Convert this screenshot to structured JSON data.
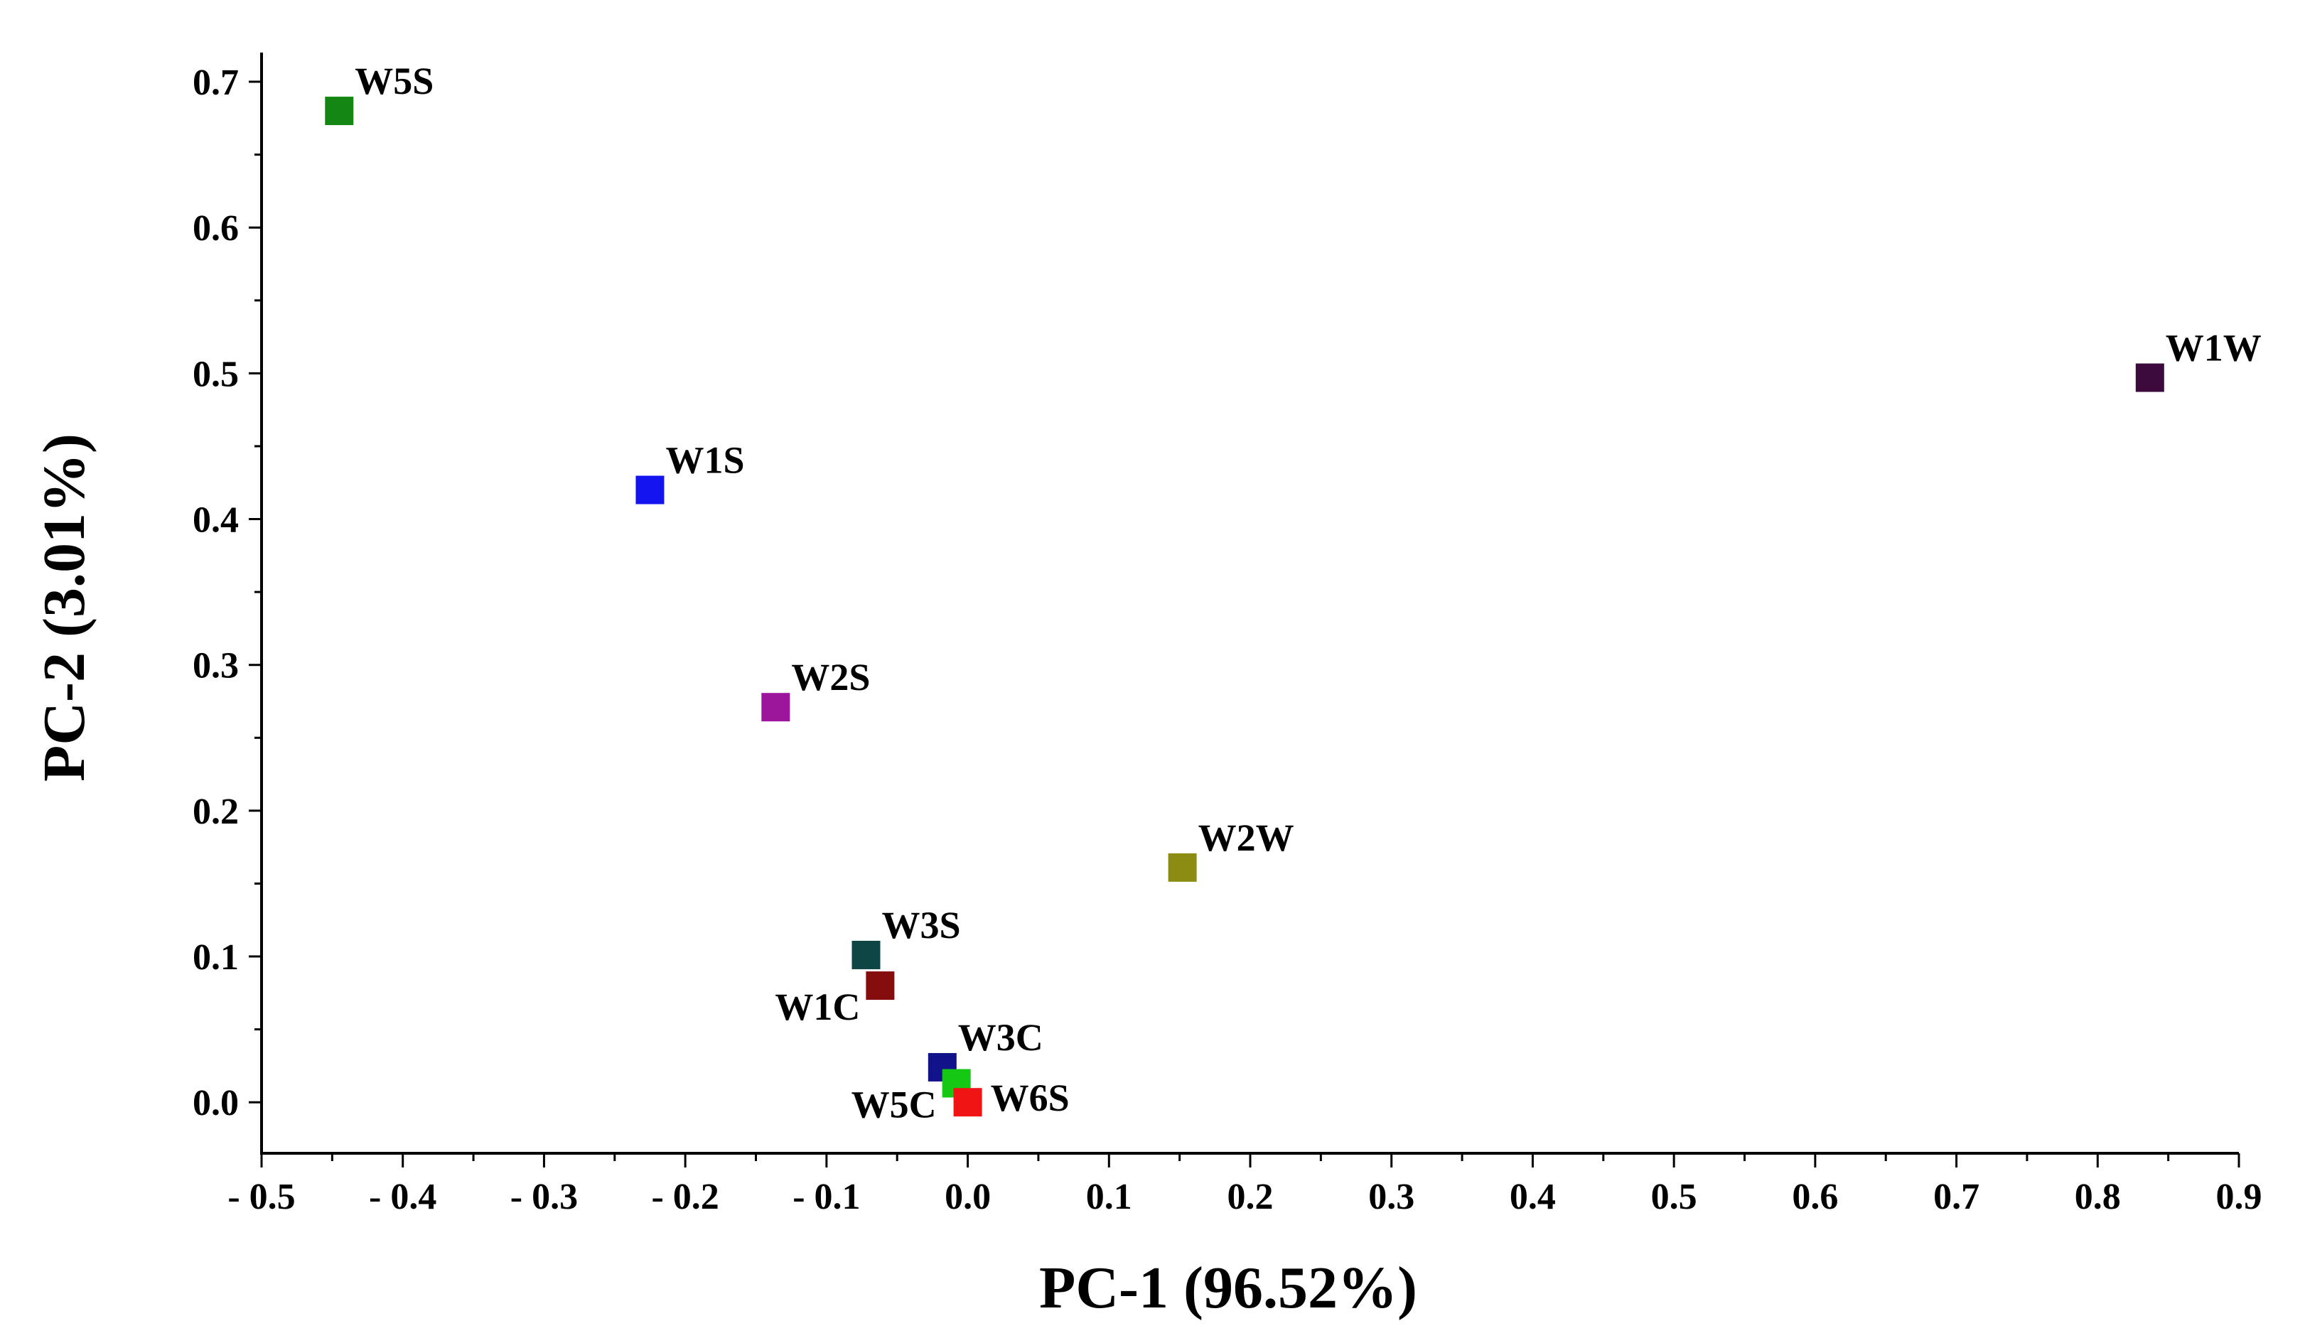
{
  "chart_data": {
    "type": "scatter",
    "title": "",
    "xlabel": "PC-1 (96.52%)",
    "ylabel": "PC-2 (3.01%)",
    "xlim": [
      -0.5,
      0.9
    ],
    "ylim": [
      -0.035,
      0.72
    ],
    "x_ticks": [
      -0.5,
      -0.4,
      -0.3,
      -0.2,
      -0.1,
      0.0,
      0.1,
      0.2,
      0.3,
      0.4,
      0.5,
      0.6,
      0.7,
      0.8,
      0.9
    ],
    "x_tick_labels": [
      "- 0.5",
      "- 0.4",
      "- 0.3",
      "- 0.2",
      "- 0.1",
      "0.0",
      "0.1",
      "0.2",
      "0.3",
      "0.4",
      "0.5",
      "0.6",
      "0.7",
      "0.8",
      "0.9"
    ],
    "y_ticks": [
      0.0,
      0.1,
      0.2,
      0.3,
      0.4,
      0.5,
      0.6,
      0.7
    ],
    "y_tick_labels": [
      "0.0",
      "0.1",
      "0.2",
      "0.3",
      "0.4",
      "0.5",
      "0.6",
      "0.7"
    ],
    "grid": false,
    "legend": "none",
    "points": [
      {
        "label": "W5S",
        "x": -0.445,
        "y": 0.68,
        "color": "#138613",
        "label_side": "top-right"
      },
      {
        "label": "W1W",
        "x": 0.837,
        "y": 0.497,
        "color": "#3c0a3c",
        "label_side": "top-right"
      },
      {
        "label": "W1S",
        "x": -0.225,
        "y": 0.42,
        "color": "#1414f0",
        "label_side": "top-right"
      },
      {
        "label": "W2S",
        "x": -0.136,
        "y": 0.271,
        "color": "#9b169b",
        "label_side": "top-right"
      },
      {
        "label": "W2W",
        "x": 0.152,
        "y": 0.161,
        "color": "#8c8c12",
        "label_side": "top-right"
      },
      {
        "label": "W3S",
        "x": -0.072,
        "y": 0.101,
        "color": "#0e4646",
        "label_side": "top-right"
      },
      {
        "label": "W1C",
        "x": -0.062,
        "y": 0.08,
        "color": "#850d0d",
        "label_side": "bottom-left"
      },
      {
        "label": "W3C",
        "x": -0.018,
        "y": 0.024,
        "color": "#12128a",
        "label_side": "top-right"
      },
      {
        "label": "W5C",
        "x": -0.008,
        "y": 0.013,
        "color": "#14c814",
        "label_side": "bottom-left"
      },
      {
        "label": "W6S",
        "x": 0.0,
        "y": 0.0,
        "color": "#f01414",
        "label_side": "right"
      }
    ]
  }
}
